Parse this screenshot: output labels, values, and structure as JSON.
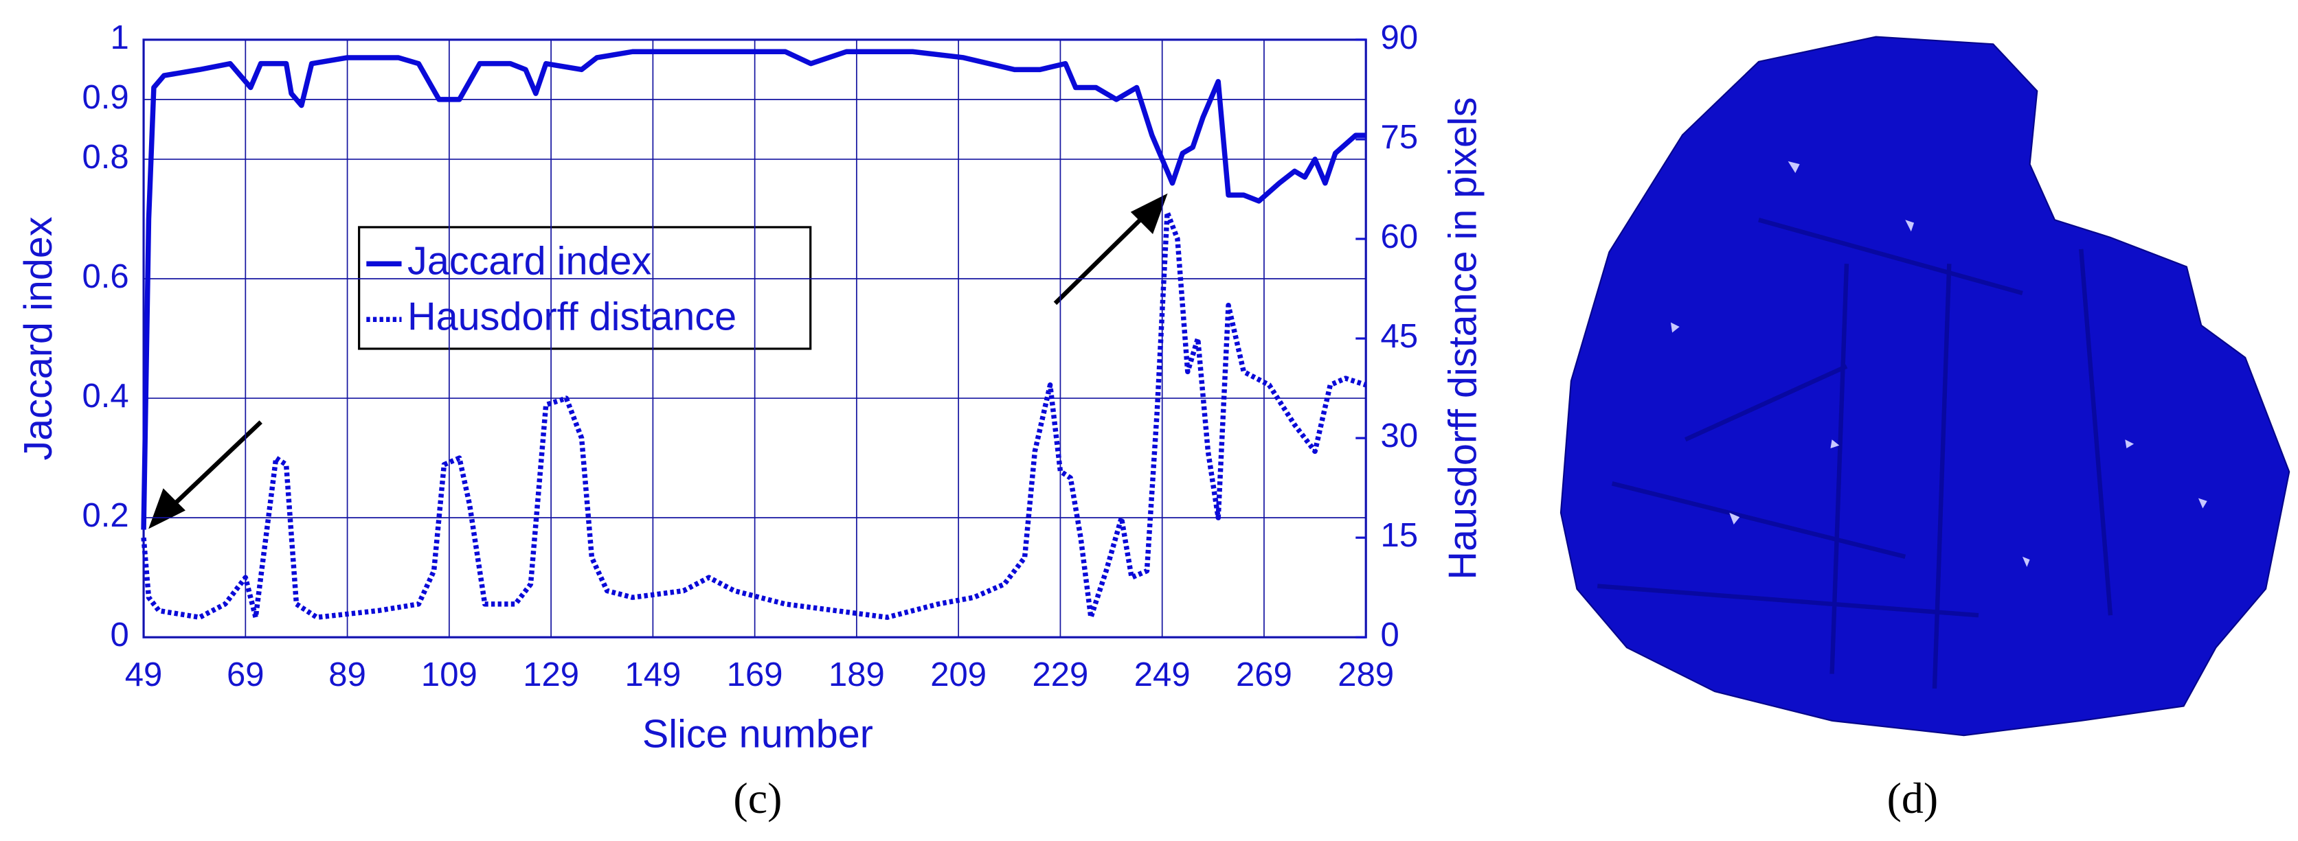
{
  "chart_data": {
    "type": "line",
    "x_label": "Slice number",
    "y_label": "Jaccard index",
    "y2_label": "Hausdorff distance in pixels",
    "xlim": [
      49,
      289
    ],
    "xticks": [
      49,
      69,
      89,
      109,
      129,
      149,
      169,
      189,
      209,
      229,
      249,
      269,
      289
    ],
    "ylim": [
      0,
      1
    ],
    "yticks": [
      0,
      0.2,
      0.4,
      0.6,
      0.8,
      0.9,
      1
    ],
    "y2lim": [
      0,
      90
    ],
    "y2ticks": [
      0,
      15,
      30,
      45,
      60,
      75,
      90
    ],
    "grid": true,
    "series": [
      {
        "name": "Jaccard index",
        "color": "#0a0ad8",
        "dash": "solid",
        "x": [
          49,
          50,
          51,
          53,
          60,
          66,
          70,
          72,
          77,
          78,
          80,
          82,
          89,
          99,
          103,
          107,
          111,
          115,
          121,
          124,
          126,
          128,
          135,
          138,
          145,
          160,
          175,
          180,
          187,
          200,
          210,
          220,
          225,
          230,
          232,
          236,
          240,
          244,
          247,
          249,
          251,
          253,
          255,
          257,
          260,
          262,
          265,
          268,
          272,
          275,
          277,
          279,
          281,
          283,
          287,
          289
        ],
        "values": [
          0.18,
          0.7,
          0.92,
          0.94,
          0.95,
          0.96,
          0.92,
          0.96,
          0.96,
          0.91,
          0.89,
          0.96,
          0.97,
          0.97,
          0.96,
          0.9,
          0.9,
          0.96,
          0.96,
          0.95,
          0.91,
          0.96,
          0.95,
          0.97,
          0.98,
          0.98,
          0.98,
          0.96,
          0.98,
          0.98,
          0.97,
          0.95,
          0.95,
          0.96,
          0.92,
          0.92,
          0.9,
          0.92,
          0.84,
          0.8,
          0.76,
          0.81,
          0.82,
          0.87,
          0.93,
          0.74,
          0.74,
          0.73,
          0.76,
          0.78,
          0.77,
          0.8,
          0.76,
          0.81,
          0.84,
          0.84
        ]
      },
      {
        "name": "Hausdorff distance",
        "color": "#0a0ad8",
        "dash": "dotted",
        "axis": "y2",
        "x": [
          49,
          50,
          52,
          60,
          65,
          67,
          69,
          71,
          75,
          77,
          79,
          83,
          95,
          103,
          106,
          108,
          111,
          113,
          116,
          122,
          125,
          128,
          132,
          135,
          137,
          140,
          145,
          155,
          160,
          165,
          175,
          185,
          195,
          205,
          212,
          218,
          222,
          224,
          227,
          229,
          231,
          233,
          235,
          238,
          241,
          243,
          246,
          248,
          250,
          252,
          254,
          256,
          258,
          260,
          262,
          265,
          270,
          275,
          279,
          282,
          285,
          289
        ],
        "values": [
          15,
          6,
          4,
          3,
          5,
          7,
          9,
          3,
          27,
          26,
          5,
          3,
          4,
          5,
          10,
          26,
          27,
          20,
          5,
          5,
          8,
          35,
          36,
          30,
          12,
          7,
          6,
          7,
          9,
          7,
          5,
          4,
          3,
          5,
          6,
          8,
          12,
          28,
          38,
          25,
          24,
          15,
          3,
          10,
          18,
          9,
          10,
          34,
          64,
          60,
          40,
          45,
          28,
          18,
          50,
          40,
          38,
          32,
          28,
          38,
          39,
          38
        ]
      }
    ]
  },
  "captions": [
    "(c)",
    "(d)"
  ]
}
